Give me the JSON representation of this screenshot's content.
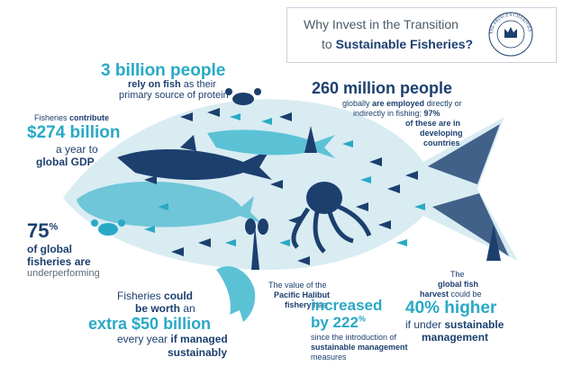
{
  "header": {
    "line1": "Why Invest in the Transition",
    "line2_prefix": "to ",
    "line2_bold": "Sustainable Fisheries?",
    "seal_text": "THE PRINCE'S CHARITIES"
  },
  "stat_people": {
    "headline": "3 billion people",
    "line1_bold": "rely on fish",
    "line1_rest": " as their",
    "line2": "primary source of protein"
  },
  "stat_gdp": {
    "intro_prefix": "Fisheries ",
    "intro_bold": "contribute",
    "amount": "$274 billion",
    "line2": "a year to",
    "line3": "global GDP"
  },
  "stat_employed": {
    "headline": "260 million people",
    "l1_prefix": "globally ",
    "l1_bold": "are employed",
    "l1_rest": " directly or",
    "l2_prefix": "indirectly in fishing; ",
    "l2_bold": "97%",
    "l3": "of these are in",
    "l4": "developing",
    "l5": "countries"
  },
  "stat_underperforming": {
    "number": "75",
    "unit": "%",
    "line1": "of global",
    "line2": "fisheries are",
    "line3": "underperforming"
  },
  "stat_worth": {
    "line1_prefix": "Fisheries ",
    "line1_bold": "could",
    "line2_bold": "be worth",
    "line2_rest": " an",
    "amount": "extra $50 billion",
    "line4_prefix": "every year ",
    "line4_bold": "if managed",
    "line5": "sustainably"
  },
  "stat_halibut": {
    "line1": "The value of the",
    "line2": "Pacific Halibut",
    "line3_bold": "fishery",
    "line3_rest": " has"
  },
  "stat_increased": {
    "word": "increased",
    "by": "by 222",
    "pct": "%",
    "l1": "since the introduction of",
    "l2": "sustainable management",
    "l3": "measures"
  },
  "stat_harvest": {
    "l1": "The",
    "l2_bold": "global fish",
    "l3_bold": "harvest",
    "l3_rest": " could be",
    "amount": "40% higher",
    "l5_prefix": "if under ",
    "l5_bold": "sustainable",
    "l6": "management"
  },
  "colors": {
    "navy": "#1c3f6e",
    "teal": "#29a9c6",
    "light_teal": "#5bc2d6",
    "gray": "#5a6b7a"
  }
}
